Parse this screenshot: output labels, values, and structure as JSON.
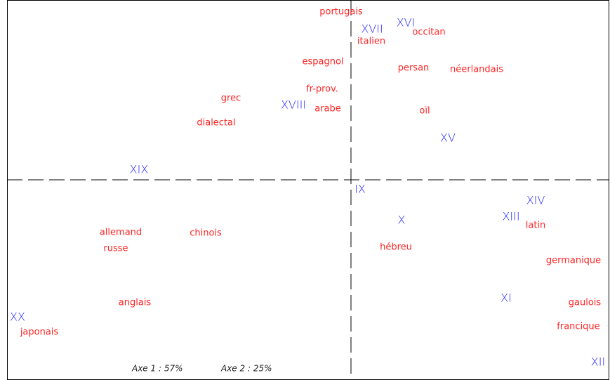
{
  "chart_data": {
    "type": "scatter",
    "annotations": [
      "Axe 1 : 57%",
      "Axe 2 : 25%"
    ],
    "xlim": [
      -4.9,
      3.68
    ],
    "ylim": [
      -2.85,
      2.56
    ],
    "series": [
      {
        "color": "#2424ff",
        "labels": [
          "XVII",
          "XVI",
          "XVIII",
          "XV",
          "XIX",
          "IX",
          "X",
          "XIV",
          "XIII",
          "XI",
          "XX",
          "XII"
        ],
        "x": [
          0.3,
          0.78,
          -0.82,
          1.38,
          -3.02,
          0.13,
          0.72,
          2.63,
          2.28,
          2.21,
          -4.75,
          3.52
        ],
        "y": [
          2.14,
          2.23,
          1.06,
          0.59,
          0.14,
          -0.14,
          -0.58,
          -0.3,
          -0.53,
          -1.69,
          -1.96,
          -2.6
        ]
      },
      {
        "color": "#ff2424",
        "labels": [
          "portugais",
          "occitan",
          "italien",
          "espagnol",
          "persan",
          "néerlandais",
          "fr-prov.",
          "grec",
          "arabe",
          "oïl",
          "dialectal",
          "allemand",
          "chinois",
          "russe",
          "hébreu",
          "latin",
          "germanique",
          "anglais",
          "gaulois",
          "francique",
          "japonais"
        ],
        "x": [
          -0.14,
          1.11,
          0.29,
          -0.4,
          0.89,
          1.79,
          -0.41,
          -1.71,
          -0.33,
          1.05,
          -1.92,
          -3.28,
          -2.07,
          -3.35,
          0.64,
          2.63,
          3.17,
          -3.08,
          3.33,
          3.24,
          -4.44
        ],
        "y": [
          2.39,
          2.1,
          1.97,
          1.68,
          1.59,
          1.57,
          1.29,
          1.16,
          1.01,
          0.98,
          0.81,
          -0.75,
          -0.76,
          -0.98,
          -0.96,
          -0.65,
          -1.15,
          -1.75,
          -1.75,
          -2.09,
          -2.17
        ]
      }
    ]
  }
}
